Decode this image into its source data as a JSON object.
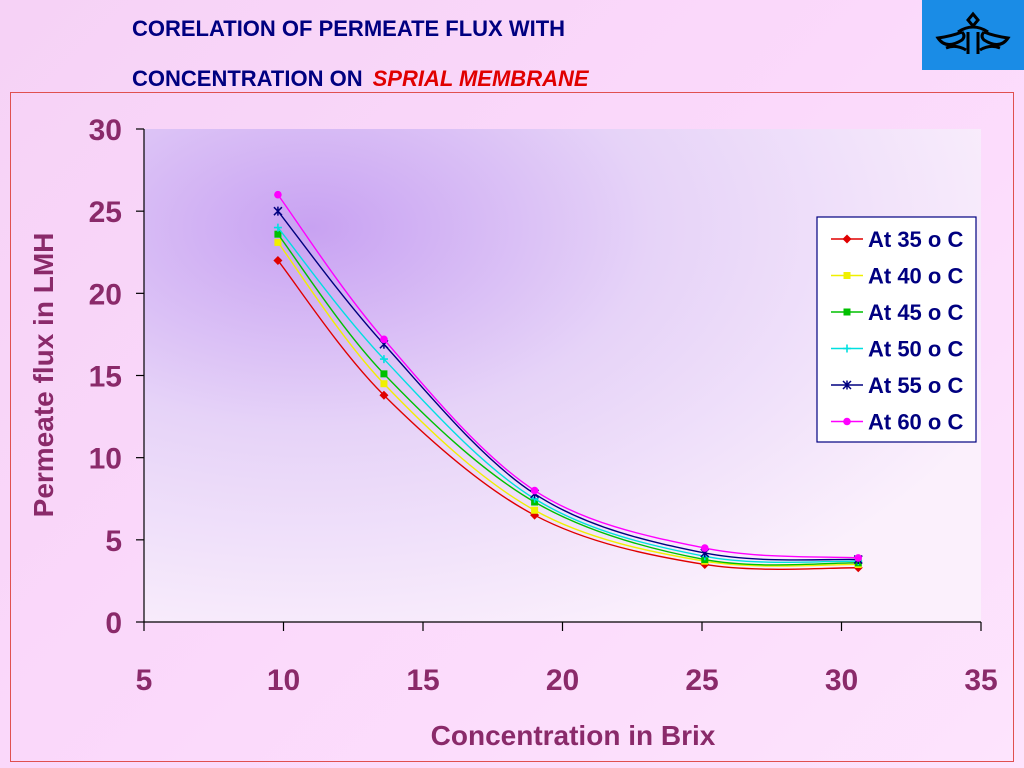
{
  "slide": {
    "title_line1": "CORELATION OF PERMEATE FLUX WITH",
    "title_line2_main": "CONCENTRATION ON",
    "title_line2_accent": "SPRIAL  MEMBRANE",
    "logo_icon": "company-logo-icon"
  },
  "colors": {
    "title": "#000080",
    "accent": "#e00000",
    "axis_text": "#8a2a6a",
    "logo_bg": "#1a8ce6"
  },
  "chart_data": {
    "type": "line",
    "title": "",
    "xlabel": "Concentration in Brix",
    "ylabel": "Permeate flux in LMH",
    "xlim": [
      5,
      35
    ],
    "ylim": [
      0,
      30
    ],
    "xticks": [
      5,
      10,
      15,
      20,
      25,
      30,
      35
    ],
    "yticks": [
      0,
      5,
      10,
      15,
      20,
      25,
      30
    ],
    "grid": false,
    "legend_position": "right",
    "x": [
      9.8,
      13.6,
      19,
      25.1,
      30.6
    ],
    "series": [
      {
        "name": "At 35 o C",
        "color": "#e00000",
        "marker": "diamond",
        "values": [
          22,
          13.8,
          6.5,
          3.5,
          3.3
        ]
      },
      {
        "name": "At 40 o C",
        "color": "#f0f000",
        "marker": "square",
        "values": [
          23.1,
          14.5,
          6.8,
          3.7,
          3.5
        ]
      },
      {
        "name": "At 45 o C",
        "color": "#00c000",
        "marker": "square",
        "values": [
          23.6,
          15.1,
          7.3,
          3.8,
          3.6
        ]
      },
      {
        "name": "At 50 o C",
        "color": "#00e0e0",
        "marker": "plus",
        "values": [
          24,
          16,
          7.5,
          4,
          3.7
        ]
      },
      {
        "name": "At 55 o C",
        "color": "#000080",
        "marker": "star",
        "values": [
          25,
          16.9,
          7.8,
          4.2,
          3.8
        ]
      },
      {
        "name": "At 60 o C",
        "color": "#ff00ff",
        "marker": "circle",
        "values": [
          26,
          17.2,
          8,
          4.5,
          3.9
        ]
      }
    ]
  }
}
